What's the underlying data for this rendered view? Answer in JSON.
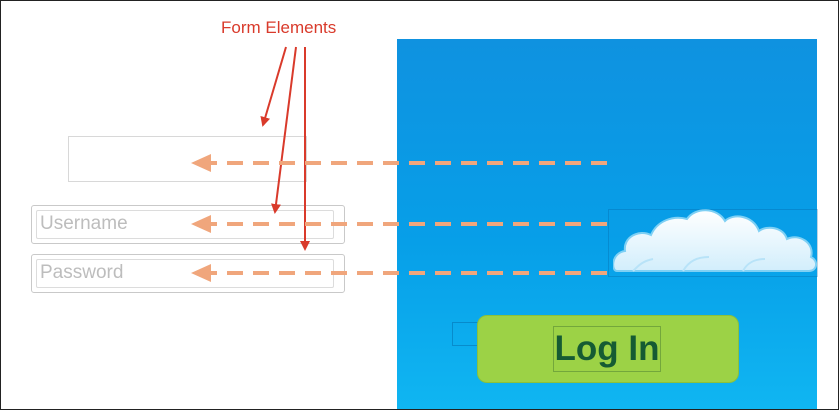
{
  "annotation": {
    "title": "Form Elements"
  },
  "form": {
    "blank_field": {
      "value": ""
    },
    "username": {
      "placeholder": "Username"
    },
    "password": {
      "placeholder": "Password"
    }
  },
  "mockup": {
    "login_button_label": "Log In",
    "cloud_icon": "cloud-icon"
  },
  "colors": {
    "annotation_red": "#d93a2b",
    "dashed_arrow": "#f0a67c",
    "mockup_blue": "#079fe8",
    "button_green": "#9cd246",
    "button_text": "#155b33"
  }
}
